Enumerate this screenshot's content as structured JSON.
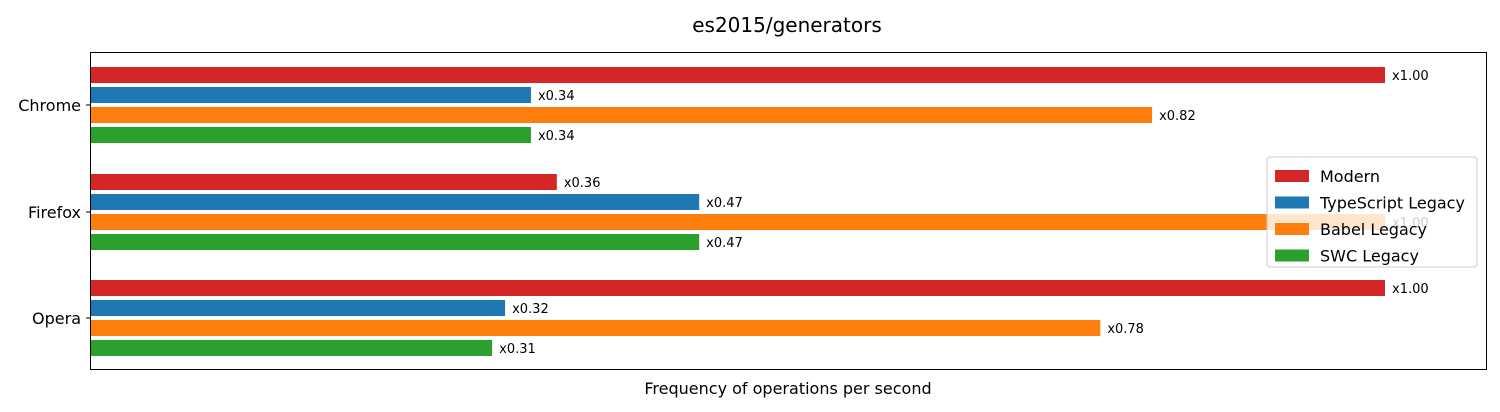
{
  "chart_data": {
    "type": "bar",
    "orientation": "horizontal",
    "title": "es2015/generators",
    "xlabel": "Frequency of operations per second",
    "ylabel": "",
    "categories": [
      "Chrome",
      "Firefox",
      "Opera"
    ],
    "series": [
      {
        "name": "Modern",
        "color": "#d62728",
        "values": [
          1.0,
          0.36,
          1.0
        ],
        "labels": [
          "x1.00",
          "x0.36",
          "x1.00"
        ]
      },
      {
        "name": "TypeScript Legacy",
        "color": "#1f77b4",
        "values": [
          0.34,
          0.47,
          0.32
        ],
        "labels": [
          "x0.34",
          "x0.47",
          "x0.32"
        ]
      },
      {
        "name": "Babel Legacy",
        "color": "#ff7f0e",
        "values": [
          0.82,
          1.0,
          0.78
        ],
        "labels": [
          "x0.82",
          "x1.00",
          "x0.78"
        ]
      },
      {
        "name": "SWC Legacy",
        "color": "#2ca02c",
        "values": [
          0.34,
          0.47,
          0.31
        ],
        "labels": [
          "x0.34",
          "x0.47",
          "x0.31"
        ]
      }
    ],
    "legend_position": "center-right",
    "grid": false,
    "x_ticks_shown": false
  }
}
